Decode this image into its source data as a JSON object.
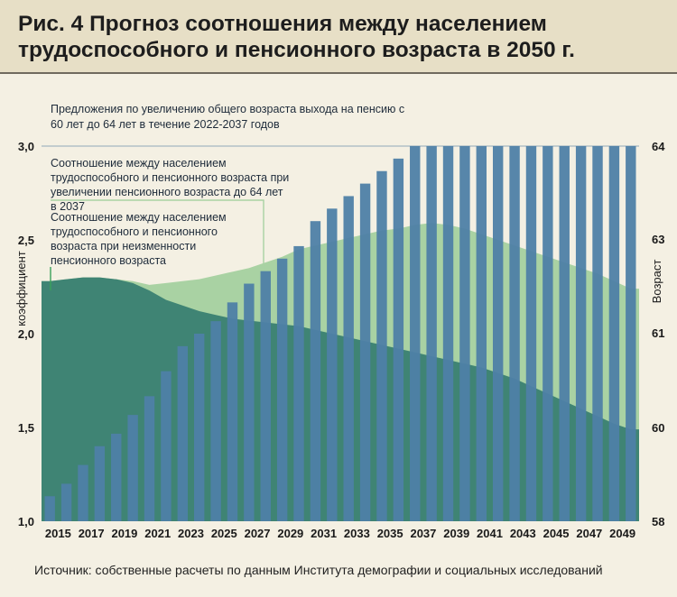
{
  "title": "Рис. 4 Прогноз соотношения между населением трудоспособного и пенсионного возраста в 2050 г.",
  "source": "Источник: собственные расчеты по данным Института демографии и социальных исследований",
  "colors": {
    "bars": "#4e7fa6",
    "area_reform": "#a9d2a3",
    "area_no_reform": "#3f8474",
    "background": "#f4f0e3",
    "header": "#e7dfc6",
    "leader_line": "#4e7fa6",
    "leader_green": "#a9d2a3",
    "leader_green_dark": "#3aa05a"
  },
  "chart_data": {
    "type": "bar",
    "years": [
      2015,
      2016,
      2017,
      2018,
      2019,
      2020,
      2021,
      2022,
      2023,
      2024,
      2025,
      2026,
      2027,
      2028,
      2029,
      2030,
      2031,
      2032,
      2033,
      2034,
      2035,
      2036,
      2037,
      2038,
      2039,
      2040,
      2041,
      2042,
      2043,
      2044,
      2045,
      2046,
      2047,
      2048,
      2049,
      2050
    ],
    "x_tick_labels": [
      "2015",
      "2017",
      "2019",
      "2021",
      "2023",
      "2025",
      "2027",
      "2029",
      "2031",
      "2033",
      "2035",
      "2037",
      "2039",
      "2041",
      "2043",
      "2045",
      "2047",
      "2049"
    ],
    "ylabel_left": "коэффициент",
    "ylabel_right": "Возраст",
    "ylim_left": [
      1.0,
      3.0
    ],
    "ylim_right": [
      58,
      64
    ],
    "yticks_left": [
      "1,0",
      "1,5",
      "2,0",
      "2,5",
      "3,0"
    ],
    "yticks_right": [
      "58",
      "60",
      "61",
      "62",
      "63",
      "64"
    ],
    "series": [
      {
        "name": "Предложения по увеличению общего возраста выхода на пенсию с 60 лет до 64 лет в течение 2022-2037 годов",
        "kind": "bar",
        "axis": "right",
        "values": [
          58.4,
          58.6,
          58.9,
          59.2,
          59.4,
          59.7,
          60.0,
          60.4,
          60.8,
          61.0,
          61.2,
          61.5,
          61.8,
          62.0,
          62.2,
          62.4,
          62.8,
          63.0,
          63.2,
          63.4,
          63.6,
          63.8,
          64.0,
          64.0,
          64.0,
          64.0,
          64.0,
          64.0,
          64.0,
          64.0,
          64.0,
          64.0,
          64.0,
          64.0,
          64.0,
          64.0
        ]
      },
      {
        "name": "Соотношение между населением трудоспособного и пенсионного возраста при увеличении пенсионного возраста до 64 лет в 2037",
        "kind": "area",
        "axis": "left",
        "values": [
          2.28,
          2.29,
          2.3,
          2.3,
          2.29,
          2.28,
          2.26,
          2.27,
          2.28,
          2.29,
          2.31,
          2.33,
          2.35,
          2.38,
          2.41,
          2.45,
          2.47,
          2.49,
          2.51,
          2.53,
          2.55,
          2.56,
          2.58,
          2.59,
          2.58,
          2.56,
          2.53,
          2.5,
          2.47,
          2.44,
          2.41,
          2.38,
          2.35,
          2.32,
          2.28,
          2.24
        ]
      },
      {
        "name": "Соотношение между населением трудоспособного и пенсионного возраста при неизменности пенсионного возраста",
        "kind": "area",
        "axis": "left",
        "values": [
          2.28,
          2.29,
          2.3,
          2.3,
          2.29,
          2.27,
          2.23,
          2.18,
          2.15,
          2.12,
          2.1,
          2.08,
          2.07,
          2.06,
          2.05,
          2.04,
          2.02,
          2.0,
          1.98,
          1.96,
          1.94,
          1.92,
          1.9,
          1.88,
          1.86,
          1.84,
          1.82,
          1.79,
          1.76,
          1.72,
          1.68,
          1.64,
          1.6,
          1.56,
          1.52,
          1.49
        ]
      }
    ],
    "annotations": [
      "Предложения по увеличению общего возраста выхода на пенсию с 60 лет до 64 лет в течение 2022-2037 годов",
      "Соотношение между населением трудоспособного и пенсионного возраста при увеличении пенсионного возраста до 64 лет в 2037",
      "Соотношение между населением трудоспособного и пенсионного возраста при неизменности пенсионного возраста"
    ]
  }
}
